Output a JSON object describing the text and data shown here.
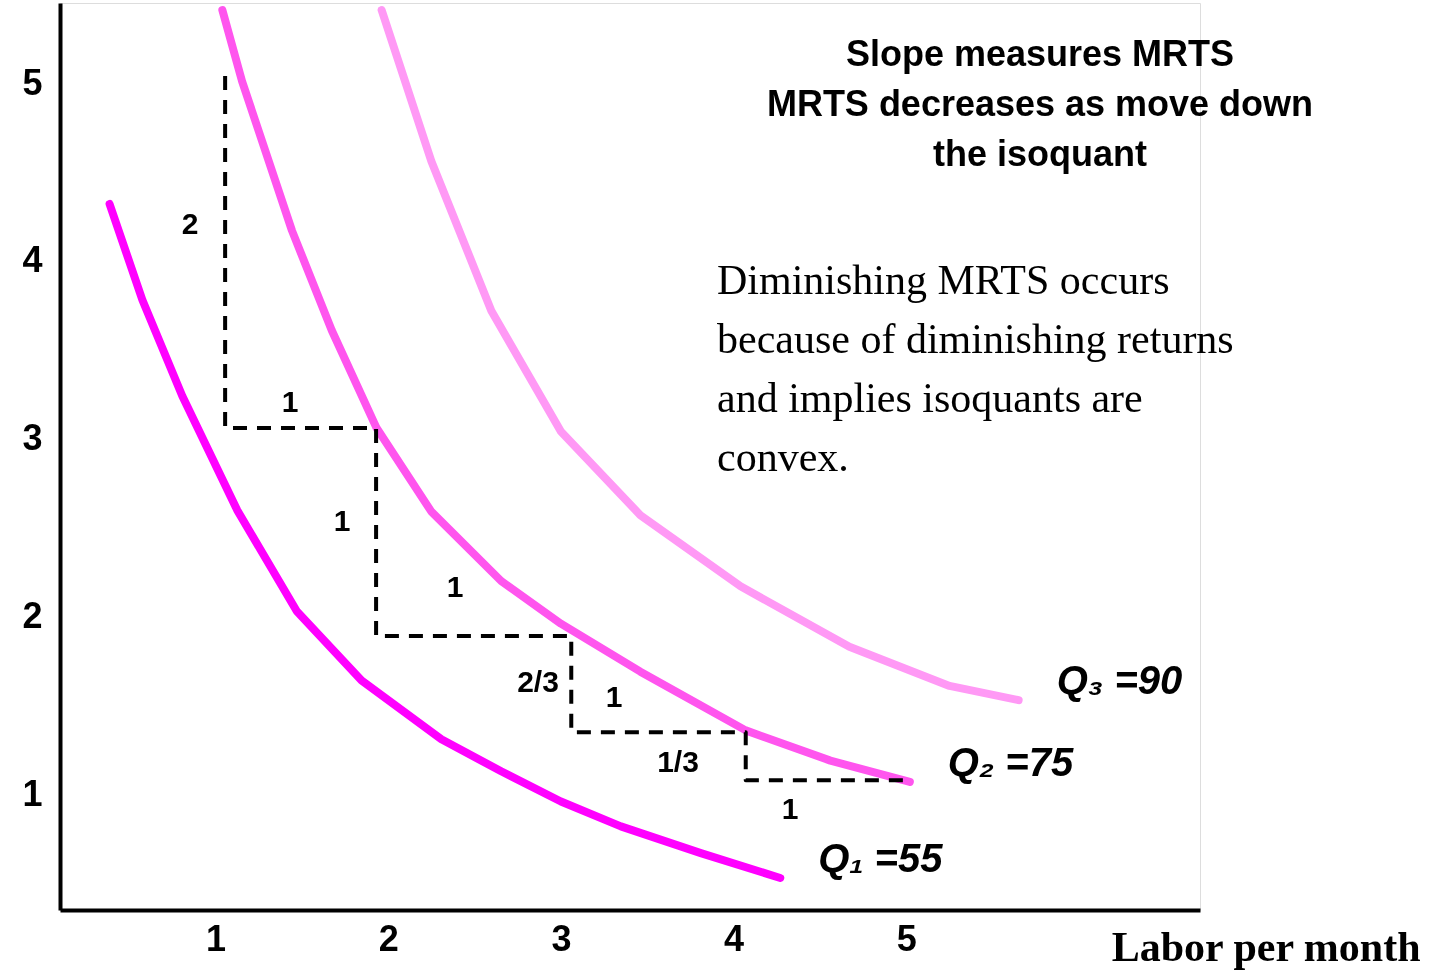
{
  "chart_data": {
    "type": "line",
    "xlabel": "Labor per month",
    "xlim": [
      0.1,
      6.7
    ],
    "ylim": [
      0.35,
      5.45
    ],
    "xticks": [
      1,
      2,
      3,
      4,
      5
    ],
    "yticks": [
      1,
      2,
      3,
      4,
      5
    ],
    "grid": false,
    "marker": "none",
    "series": [
      {
        "name": "Q₁ =55",
        "color": "#ff00ff",
        "line_style": "solid",
        "x": [
          0.387,
          0.577,
          0.808,
          1.125,
          1.471,
          1.846,
          2.308,
          2.654,
          3.0,
          3.347,
          3.81,
          4.27
        ],
        "values": [
          4.32,
          3.78,
          3.24,
          2.6,
          2.03,
          1.64,
          1.31,
          1.13,
          0.96,
          0.82,
          0.67,
          0.53
        ]
      },
      {
        "name": "Q₂ =75",
        "color": "#ff55ee",
        "line_style": "solid",
        "x": [
          1.04,
          1.154,
          1.443,
          1.673,
          1.933,
          2.25,
          2.654,
          3.0,
          3.46,
          4.07,
          4.56,
          5.02
        ],
        "values": [
          5.41,
          5.01,
          4.17,
          3.61,
          3.06,
          2.59,
          2.2,
          1.96,
          1.69,
          1.36,
          1.19,
          1.07
        ]
      },
      {
        "name": "Q₃ =90",
        "color": "#ff99f5",
        "line_style": "solid",
        "x": [
          1.962,
          2.25,
          2.597,
          3.0,
          3.46,
          4.04,
          4.67,
          5.25,
          5.65
        ],
        "values": [
          5.41,
          4.56,
          3.72,
          3.04,
          2.57,
          2.17,
          1.83,
          1.61,
          1.53
        ]
      },
      {
        "color": "#000000",
        "line_style": "dashed",
        "x": [
          1.056,
          1.056,
          1.93,
          1.93,
          3.06,
          3.06,
          4.07,
          4.07,
          4.99
        ],
        "values": [
          5.04,
          3.06,
          3.06,
          1.89,
          1.89,
          1.35,
          1.35,
          1.08,
          1.08
        ]
      }
    ],
    "annotations": [
      "Slope measures MRTS\nMRTS decreases as move down\nthe isoquant",
      "Diminishing MRTS occurs\nbecause of diminishing returns\nand implies isoquants are\nconvex.",
      "2",
      "1",
      "1",
      "1",
      "2/3",
      "1",
      "1/3",
      "1"
    ]
  }
}
